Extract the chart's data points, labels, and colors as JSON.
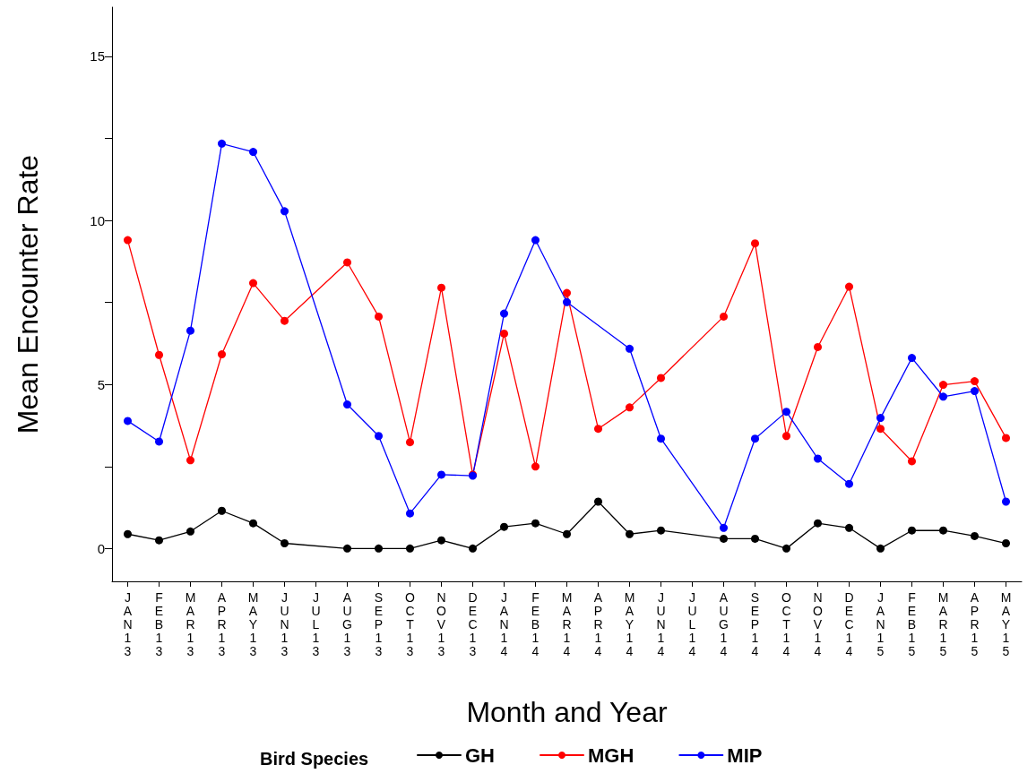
{
  "chart_data": {
    "type": "line",
    "xlabel": "Month and Year",
    "ylabel": "Mean Encounter Rate",
    "legend_title": "Bird Species",
    "categories": [
      "JAN13",
      "FEB13",
      "MAR13",
      "APR13",
      "MAY13",
      "JUN13",
      "JUL13",
      "AUG13",
      "SEP13",
      "OCT13",
      "NOV13",
      "DEC13",
      "JAN14",
      "FEB14",
      "MAR14",
      "APR14",
      "MAY14",
      "JUN14",
      "JUL14",
      "AUG14",
      "SEP14",
      "OCT14",
      "NOV14",
      "DEC14",
      "JAN15",
      "FEB15",
      "MAR15",
      "APR15",
      "MAY15"
    ],
    "series": [
      {
        "name": "GH",
        "color": "#000000",
        "values": [
          0.44,
          0.25,
          0.52,
          1.15,
          0.77,
          0.16,
          null,
          0,
          0,
          0,
          0.25,
          0,
          0.66,
          0.77,
          0.44,
          1.43,
          0.44,
          0.55,
          null,
          0.3,
          0.3,
          0,
          0.77,
          0.63,
          0,
          0.55,
          0.55,
          0.38,
          0.16
        ]
      },
      {
        "name": "MGH",
        "color": "#ff0000",
        "values": [
          9.4,
          5.9,
          2.69,
          5.92,
          8.09,
          6.94,
          null,
          8.72,
          7.07,
          3.24,
          7.95,
          2.25,
          6.55,
          2.5,
          7.79,
          3.65,
          4.3,
          5.2,
          null,
          7.07,
          9.3,
          3.43,
          6.14,
          7.98,
          3.65,
          2.66,
          4.99,
          5.1,
          3.37
        ]
      },
      {
        "name": "MIP",
        "color": "#0000ff",
        "values": [
          3.89,
          3.26,
          6.64,
          12.34,
          12.09,
          10.28,
          null,
          4.39,
          3.43,
          1.07,
          2.25,
          2.22,
          7.16,
          9.4,
          7.51,
          null,
          6.09,
          3.35,
          null,
          0.63,
          3.35,
          4.17,
          2.74,
          1.97,
          3.98,
          5.81,
          4.63,
          4.8,
          1.43
        ]
      }
    ],
    "ylim": [
      -1,
      16.5
    ],
    "yticks": [
      0,
      {
        "value": 2.5,
        "label": null
      },
      5,
      {
        "value": 7.5,
        "label": null
      },
      10,
      {
        "value": 12.5,
        "label": null
      },
      15
    ],
    "grid": false,
    "legend": "bottom",
    "marker": "circle",
    "line_style": "solid"
  }
}
